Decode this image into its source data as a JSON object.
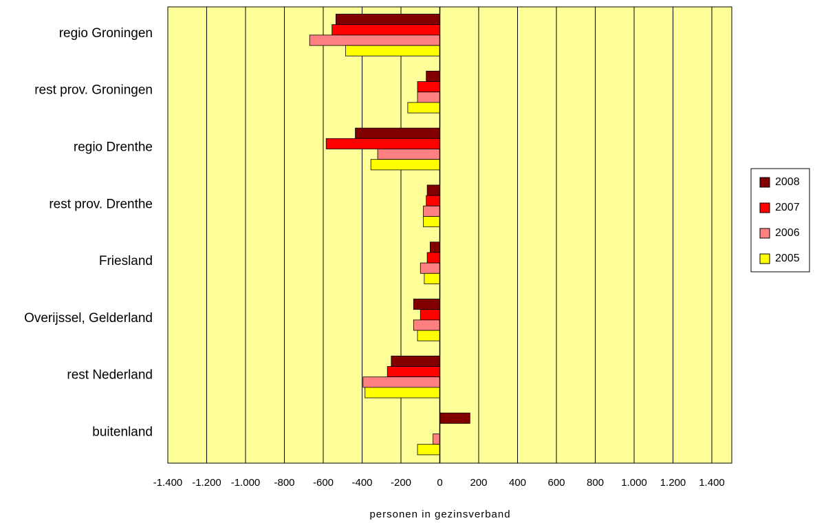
{
  "chart_data": {
    "type": "bar",
    "orientation": "horizontal",
    "categories": [
      "regio Groningen",
      "rest prov. Groningen",
      "regio Drenthe",
      "rest prov. Drenthe",
      "Friesland",
      "Overijssel, Gelderland",
      "rest Nederland",
      "buitenland"
    ],
    "series": [
      {
        "name": "2008",
        "color": "#800000",
        "values": [
          -535,
          -70,
          -435,
          -65,
          -50,
          -135,
          -250,
          155
        ]
      },
      {
        "name": "2007",
        "color": "#ff0000",
        "values": [
          -555,
          -115,
          -585,
          -70,
          -65,
          -100,
          -270,
          0
        ]
      },
      {
        "name": "2006",
        "color": "#ff8080",
        "values": [
          -670,
          -115,
          -320,
          -85,
          -100,
          -135,
          -395,
          -35
        ]
      },
      {
        "name": "2005",
        "color": "#ffff00",
        "values": [
          -485,
          -165,
          -355,
          -85,
          -80,
          -115,
          -385,
          -115
        ]
      }
    ],
    "xlabel": "personen in gezinsverband",
    "xlim": [
      -1400,
      1400
    ],
    "xticks": [
      -1400,
      -1200,
      -1000,
      -800,
      -600,
      -400,
      -200,
      0,
      200,
      400,
      600,
      800,
      1000,
      1200,
      1400
    ],
    "xtick_labels": [
      "-1.400",
      "-1.200",
      "-1.000",
      "-800",
      "-600",
      "-400",
      "-200",
      "0",
      "200",
      "400",
      "600",
      "800",
      "1.000",
      "1.200",
      "1.400"
    ],
    "grid": "vertical",
    "plot_background": "#ffff99",
    "legend_position": "right"
  }
}
